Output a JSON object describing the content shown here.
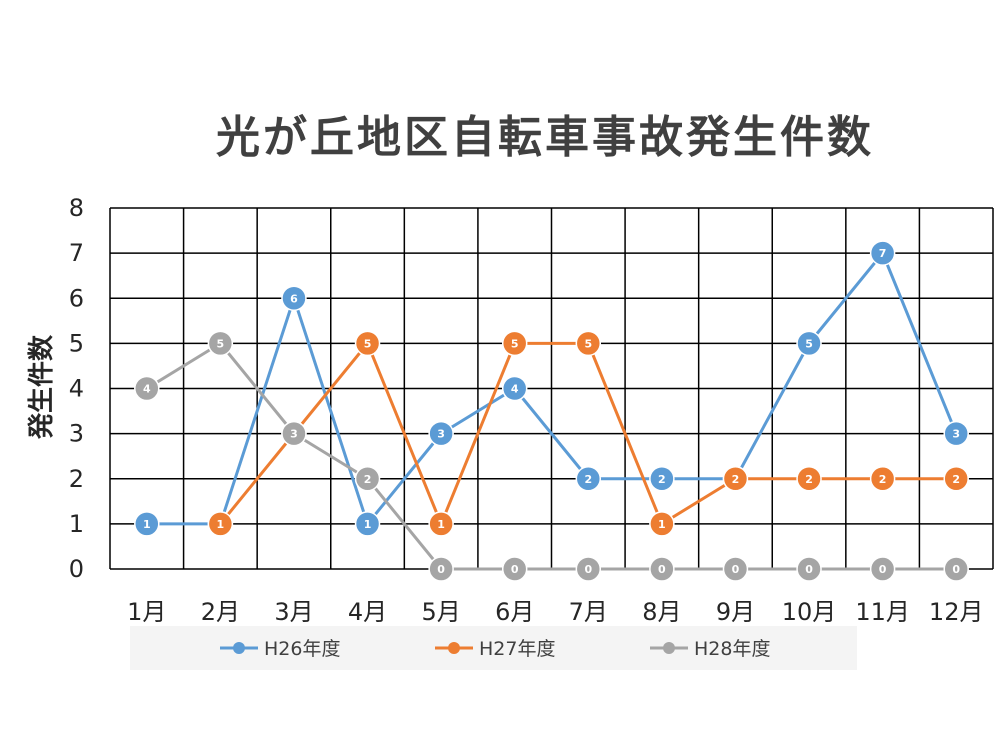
{
  "chart_data": {
    "type": "line",
    "title": "光が丘地区自転車事故発生件数",
    "xlabel": "",
    "ylabel": "発生件数",
    "ylim": [
      0,
      8
    ],
    "yticks": [
      "0",
      "1",
      "2",
      "3",
      "4",
      "5",
      "6",
      "7",
      "8"
    ],
    "categories": [
      "1月",
      "2月",
      "3月",
      "4月",
      "5月",
      "6月",
      "7月",
      "8月",
      "9月",
      "10月",
      "11月",
      "12月"
    ],
    "grid": true,
    "legend_position": "bottom",
    "data_labels": true,
    "series": [
      {
        "name": "H26年度",
        "color": "#5B9BD5",
        "values": [
          1,
          1,
          6,
          1,
          3,
          4,
          2,
          2,
          2,
          5,
          7,
          3
        ]
      },
      {
        "name": "H27年度",
        "color": "#ED7D31",
        "values": [
          null,
          1,
          3,
          5,
          1,
          5,
          5,
          1,
          2,
          2,
          2,
          2
        ]
      },
      {
        "name": "H28年度",
        "color": "#A5A5A5",
        "values": [
          4,
          5,
          3,
          2,
          0,
          0,
          0,
          0,
          0,
          0,
          0,
          0
        ]
      }
    ]
  }
}
